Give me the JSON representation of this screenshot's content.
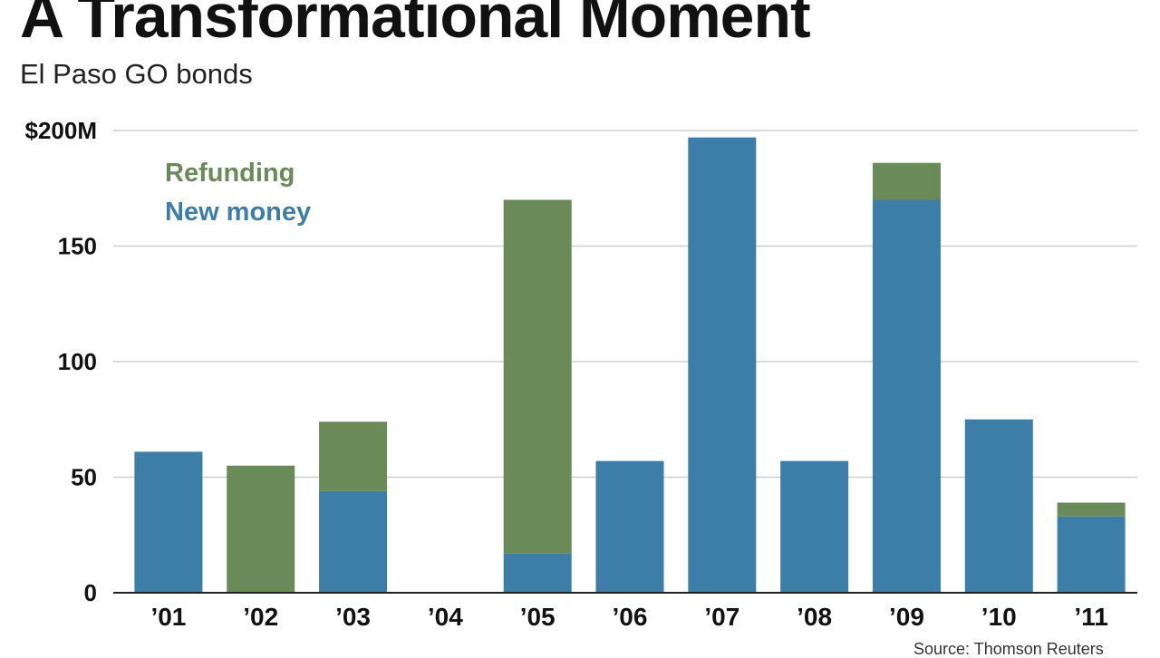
{
  "colors": {
    "refunding": "#6a8a5a",
    "new_money": "#3c7ea7",
    "grid": "#cfcfcf",
    "axis": "#222222"
  },
  "chart_data": {
    "type": "bar",
    "stacked": true,
    "title": "A Transformational Moment",
    "subtitle": "El Paso GO bonds",
    "categories": [
      "’01",
      "’02",
      "’03",
      "’04",
      "’05",
      "’06",
      "’07",
      "’08",
      "’09",
      "’10",
      "’11"
    ],
    "series": [
      {
        "name": "New money",
        "values": [
          61,
          0,
          44,
          0,
          17,
          57,
          197,
          57,
          170,
          75,
          33
        ]
      },
      {
        "name": "Refunding",
        "values": [
          0,
          55,
          30,
          0,
          153,
          0,
          0,
          0,
          16,
          0,
          6
        ]
      }
    ],
    "y_ticks": [
      0,
      50,
      100,
      150,
      200
    ],
    "y_tick_labels": [
      "0",
      "50",
      "100",
      "150",
      "$200M"
    ],
    "ylim": [
      0,
      200
    ],
    "grid": true,
    "legend": {
      "position": "top-left",
      "entries": [
        "Refunding",
        "New money"
      ]
    },
    "source": "Source: Thomson Reuters"
  }
}
